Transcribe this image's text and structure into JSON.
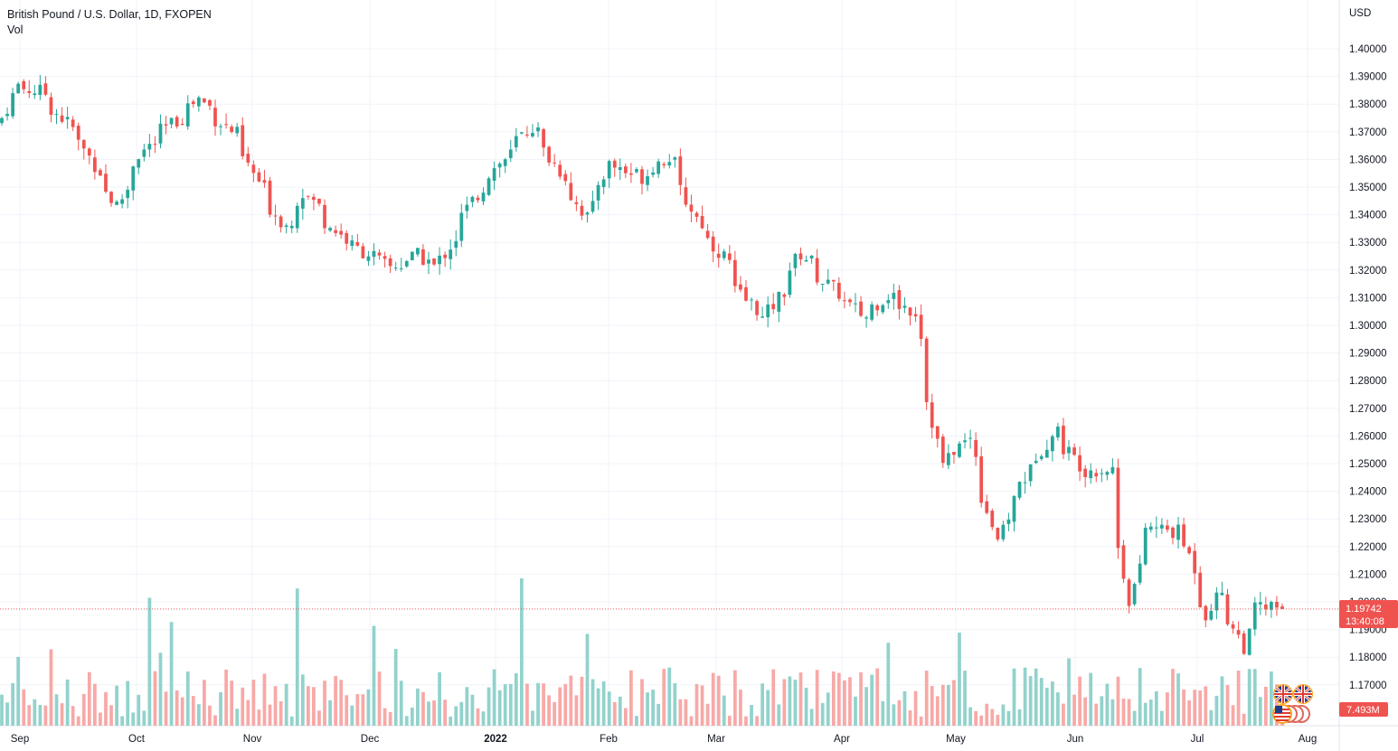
{
  "legend": {
    "title": "British Pound / U.S. Dollar, 1D, FXOPEN",
    "volume_label": "Vol"
  },
  "price_axis": {
    "currency": "USD",
    "ticks": [
      "1.40000",
      "1.39000",
      "1.38000",
      "1.37000",
      "1.36000",
      "1.35000",
      "1.34000",
      "1.33000",
      "1.32000",
      "1.31000",
      "1.30000",
      "1.29000",
      "1.28000",
      "1.27000",
      "1.26000",
      "1.25000",
      "1.24000",
      "1.23000",
      "1.22000",
      "1.21000",
      "1.20000",
      "1.19000",
      "1.18000",
      "1.17000"
    ],
    "last_price": "1.19742",
    "countdown": "13:40:08",
    "volume_value": "7.493M"
  },
  "time_axis": {
    "labels": [
      {
        "text": "Sep",
        "bold": false
      },
      {
        "text": "Oct",
        "bold": false
      },
      {
        "text": "Nov",
        "bold": false
      },
      {
        "text": "Dec",
        "bold": false
      },
      {
        "text": "2022",
        "bold": true
      },
      {
        "text": "Feb",
        "bold": false
      },
      {
        "text": "Mar",
        "bold": false
      },
      {
        "text": "Apr",
        "bold": false
      },
      {
        "text": "May",
        "bold": false
      },
      {
        "text": "Jun",
        "bold": false
      },
      {
        "text": "Jul",
        "bold": false
      },
      {
        "text": "Aug",
        "bold": false
      }
    ]
  },
  "colors": {
    "up": "#26a69a",
    "down": "#ef5350",
    "up_volume": "#92d2cc",
    "down_volume": "#f7a9a7",
    "grid": "#f0f3fa",
    "last_price": "#ef5350",
    "volume_badge": "#ef5350"
  },
  "icons": [
    "gbp-flag-icon",
    "usd-flag-icon"
  ],
  "chart_data": {
    "type": "candlestick",
    "title": "British Pound / U.S. Dollar, 1D, FXOPEN",
    "xlabel": "",
    "ylabel": "USD",
    "ylim": [
      1.167,
      1.404
    ],
    "grid": true,
    "x_range": [
      "2021-08-31",
      "2022-07-25"
    ],
    "last_price": 1.19742,
    "last_volume": "7.493M",
    "series": [
      {
        "name": "British Pound / U.S. Dollar",
        "type": "ohlc",
        "anchors": [
          {
            "date": "2021-08-31",
            "close": 1.375
          },
          {
            "date": "2021-09-03",
            "close": 1.387
          },
          {
            "date": "2021-09-10",
            "close": 1.384
          },
          {
            "date": "2021-09-20",
            "close": 1.366
          },
          {
            "date": "2021-09-29",
            "close": 1.343
          },
          {
            "date": "2021-10-05",
            "close": 1.362
          },
          {
            "date": "2021-10-20",
            "close": 1.382
          },
          {
            "date": "2021-10-29",
            "close": 1.369
          },
          {
            "date": "2021-11-05",
            "close": 1.349
          },
          {
            "date": "2021-11-11",
            "close": 1.336
          },
          {
            "date": "2021-11-16",
            "close": 1.348
          },
          {
            "date": "2021-11-26",
            "close": 1.331
          },
          {
            "date": "2021-12-08",
            "close": 1.321
          },
          {
            "date": "2021-12-15",
            "close": 1.325
          },
          {
            "date": "2021-12-20",
            "close": 1.321
          },
          {
            "date": "2021-12-31",
            "close": 1.35
          },
          {
            "date": "2022-01-13",
            "close": 1.372
          },
          {
            "date": "2022-01-24",
            "close": 1.347
          },
          {
            "date": "2022-01-27",
            "close": 1.339
          },
          {
            "date": "2022-02-02",
            "close": 1.358
          },
          {
            "date": "2022-02-10",
            "close": 1.354
          },
          {
            "date": "2022-02-17",
            "close": 1.361
          },
          {
            "date": "2022-02-24",
            "close": 1.339
          },
          {
            "date": "2022-03-04",
            "close": 1.323
          },
          {
            "date": "2022-03-07",
            "close": 1.312
          },
          {
            "date": "2022-03-14",
            "close": 1.302
          },
          {
            "date": "2022-03-23",
            "close": 1.326
          },
          {
            "date": "2022-03-31",
            "close": 1.313
          },
          {
            "date": "2022-04-08",
            "close": 1.303
          },
          {
            "date": "2022-04-14",
            "close": 1.311
          },
          {
            "date": "2022-04-21",
            "close": 1.305
          },
          {
            "date": "2022-04-25",
            "close": 1.273
          },
          {
            "date": "2022-04-28",
            "close": 1.25
          },
          {
            "date": "2022-05-05",
            "close": 1.259
          },
          {
            "date": "2022-05-12",
            "close": 1.223
          },
          {
            "date": "2022-05-16",
            "close": 1.231
          },
          {
            "date": "2022-05-18",
            "close": 1.243
          },
          {
            "date": "2022-05-27",
            "close": 1.262
          },
          {
            "date": "2022-06-03",
            "close": 1.248
          },
          {
            "date": "2022-06-10",
            "close": 1.248
          },
          {
            "date": "2022-06-15",
            "close": 1.201
          },
          {
            "date": "2022-06-20",
            "close": 1.227
          },
          {
            "date": "2022-06-28",
            "close": 1.225
          },
          {
            "date": "2022-07-05",
            "close": 1.196
          },
          {
            "date": "2022-07-08",
            "close": 1.204
          },
          {
            "date": "2022-07-14",
            "close": 1.184
          },
          {
            "date": "2022-07-18",
            "close": 1.198
          },
          {
            "date": "2022-07-25",
            "close": 1.1974
          }
        ]
      }
    ]
  }
}
